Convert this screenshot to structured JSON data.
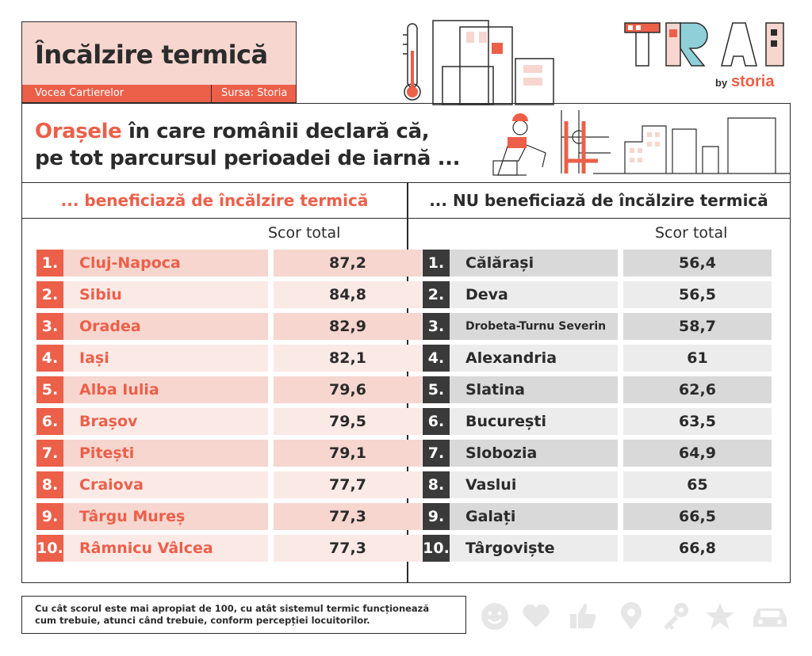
{
  "header": {
    "title": "Încălzire termică",
    "source_left": "Vocea Cartierelor",
    "source_right": "Sursa: Storia"
  },
  "logo": {
    "brand": "TRAI",
    "by": "by",
    "storia": "storia"
  },
  "subtitle": {
    "highlight": "Orașele",
    "line1_rest": " în care românii declară că,",
    "line2": "pe tot parcursul perioadei de iarnă ..."
  },
  "left": {
    "heading": "... beneficiază de încălzire termică",
    "score_label": "Scor total",
    "rows": [
      {
        "rank": "1.",
        "city": "Cluj-Napoca",
        "score": "87,2"
      },
      {
        "rank": "2.",
        "city": "Sibiu",
        "score": "84,8"
      },
      {
        "rank": "3.",
        "city": "Oradea",
        "score": "82,9"
      },
      {
        "rank": "4.",
        "city": "Iași",
        "score": "82,1"
      },
      {
        "rank": "5.",
        "city": "Alba Iulia",
        "score": "79,6"
      },
      {
        "rank": "6.",
        "city": "Brașov",
        "score": "79,5"
      },
      {
        "rank": "7.",
        "city": "Pitești",
        "score": "79,1"
      },
      {
        "rank": "8.",
        "city": "Craiova",
        "score": "77,7"
      },
      {
        "rank": "9.",
        "city": "Târgu Mureș",
        "score": "77,3"
      },
      {
        "rank": "10.",
        "city": "Râmnicu Vâlcea",
        "score": "77,3"
      }
    ]
  },
  "right": {
    "heading": "... NU beneficiază de încălzire termică",
    "score_label": "Scor total",
    "rows": [
      {
        "rank": "1.",
        "city": "Călărași",
        "score": "56,4"
      },
      {
        "rank": "2.",
        "city": "Deva",
        "score": "56,5"
      },
      {
        "rank": "3.",
        "city": "Drobeta-Turnu Severin",
        "score": "58,7"
      },
      {
        "rank": "4.",
        "city": "Alexandria",
        "score": "61"
      },
      {
        "rank": "5.",
        "city": "Slatina",
        "score": "62,6"
      },
      {
        "rank": "6.",
        "city": "București",
        "score": "63,5"
      },
      {
        "rank": "7.",
        "city": "Slobozia",
        "score": "64,9"
      },
      {
        "rank": "8.",
        "city": "Vaslui",
        "score": "65"
      },
      {
        "rank": "9.",
        "city": "Galați",
        "score": "66,5"
      },
      {
        "rank": "10.",
        "city": "Târgoviște",
        "score": "66,8"
      }
    ]
  },
  "footnote": {
    "line1": "Cu cât scorul este mai apropiat de 100, cu atât sistemul termic funcționează",
    "line2": "cum trebuie, atunci când trebuie, conform percepției locuitorilor."
  },
  "footer_icons": [
    "smiley-icon",
    "heart-icon",
    "thumbs-up-icon",
    "location-pin-icon",
    "key-icon",
    "star-icon",
    "car-icon"
  ],
  "colors": {
    "accent": "#ec5f49",
    "accent_light": "#f6d6cf",
    "dark": "#2b2b2b",
    "gray": "#d9d9d9"
  }
}
